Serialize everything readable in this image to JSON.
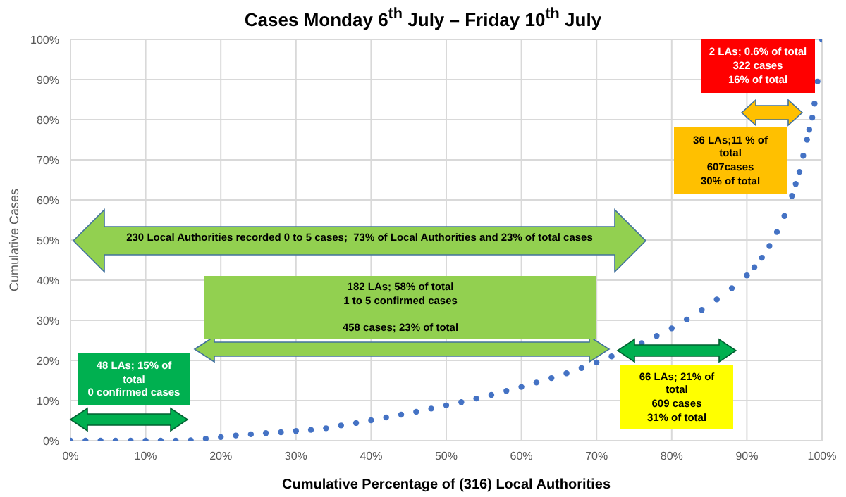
{
  "chart_data": {
    "type": "scatter",
    "title": "Cases Monday 6$^{th}$ July – Friday 10$^{th}$ July",
    "xlabel": "Cumulative Percentage of (316) Local Authorities",
    "ylabel": "Cumulative Cases",
    "x": [
      0,
      2,
      4,
      6,
      8,
      10,
      12,
      14,
      16,
      18,
      20,
      22,
      24,
      26,
      28,
      30,
      32,
      34,
      36,
      38,
      40,
      42,
      44,
      46,
      48,
      50,
      52,
      54,
      56,
      58,
      60,
      62,
      64,
      66,
      68,
      70,
      72,
      76,
      78,
      80,
      82,
      84,
      86,
      88,
      90,
      91,
      92,
      93,
      94,
      95,
      96,
      96.5,
      97,
      97.5,
      98,
      98.3,
      98.7,
      99,
      99.4,
      100
    ],
    "series": [
      {
        "color": "#4472c4",
        "values": [
          0,
          0,
          0,
          0,
          0,
          0,
          0,
          0,
          0.1,
          0.5,
          0.9,
          1.3,
          1.6,
          1.9,
          2.1,
          2.4,
          2.7,
          3.1,
          3.8,
          4.4,
          5.1,
          5.8,
          6.5,
          7.2,
          8.0,
          8.8,
          9.6,
          10.5,
          11.4,
          12.4,
          13.4,
          14.5,
          15.6,
          16.8,
          18.1,
          19.5,
          21.0,
          24.3,
          26.1,
          28.0,
          30.2,
          32.6,
          35.2,
          38.0,
          41.2,
          43.2,
          45.6,
          48.5,
          52,
          56,
          61,
          64,
          67,
          71,
          75,
          77.5,
          80.5,
          84,
          89.5,
          100
        ]
      }
    ],
    "marker": "circle",
    "grid": true,
    "xlim": [
      0,
      100
    ],
    "ylim": [
      0,
      100
    ],
    "xticks": [
      {
        "value": 0,
        "label": "0%"
      },
      {
        "value": 10,
        "label": "10%"
      },
      {
        "value": 20,
        "label": "20%"
      },
      {
        "value": 30,
        "label": "30%"
      },
      {
        "value": 40,
        "label": "40%"
      },
      {
        "value": 50,
        "label": "50%"
      },
      {
        "value": 60,
        "label": "60%"
      },
      {
        "value": 70,
        "label": "70%"
      },
      {
        "value": 80,
        "label": "80%"
      },
      {
        "value": 90,
        "label": "90%"
      },
      {
        "value": 100,
        "label": "100%"
      }
    ],
    "yticks": [
      {
        "value": 0,
        "label": "0%"
      },
      {
        "value": 10,
        "label": "10%"
      },
      {
        "value": 20,
        "label": "20%"
      },
      {
        "value": 30,
        "label": "30%"
      },
      {
        "value": 40,
        "label": "40%"
      },
      {
        "value": 50,
        "label": "50%"
      },
      {
        "value": 60,
        "label": "60%"
      },
      {
        "value": 70,
        "label": "70%"
      },
      {
        "value": 80,
        "label": "80%"
      },
      {
        "value": 90,
        "label": "90%"
      },
      {
        "value": 100,
        "label": "100%"
      }
    ],
    "annotations": [
      "230 Local Authorities recorded 0 to 5 cases;  73% of Local Authorities and 23% of total cases",
      "182 LAs; 58% of total\n1 to 5 confirmed cases\n\n458 cases; 23% of total",
      "48 LAs; 15% of\ntotal\n0 confirmed cases",
      "66 LAs; 21% of\ntotal\n609 cases\n31% of total",
      "36 LAs;11 % of\ntotal\n607cases\n30% of total",
      "2 LAs; 0.6% of total\n322 cases\n16% of total"
    ]
  }
}
